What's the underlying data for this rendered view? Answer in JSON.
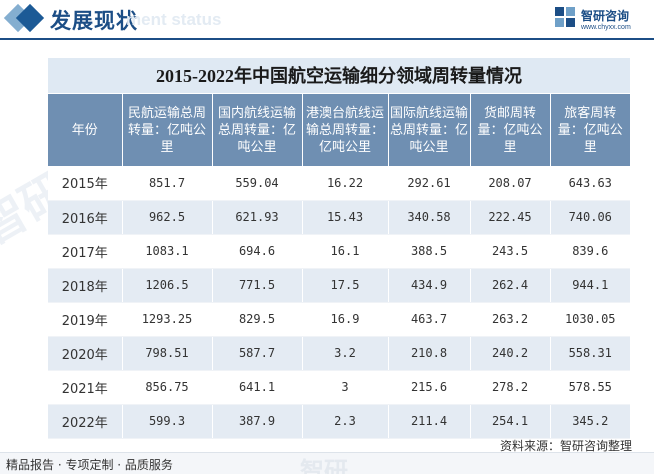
{
  "header": {
    "title": "发展现状",
    "ghost_text": "ment status"
  },
  "logo": {
    "name": "智研咨询",
    "url": "www.chyxx.com"
  },
  "table": {
    "title": "2015-2022年中国航空运输细分领域周转量情况",
    "columns": [
      "年份",
      "民航运输总周转量：亿吨公里",
      "国内航线运输总周转量：亿吨公里",
      "港澳台航线运输总周转量：亿吨公里",
      "国际航线运输总周转量：亿吨公里",
      "货邮周转量：亿吨公里",
      "旅客周转量：亿吨公里"
    ],
    "rows": [
      [
        "2015年",
        "851.7",
        "559.04",
        "16.22",
        "292.61",
        "208.07",
        "643.63"
      ],
      [
        "2016年",
        "962.5",
        "621.93",
        "15.43",
        "340.58",
        "222.45",
        "740.06"
      ],
      [
        "2017年",
        "1083.1",
        "694.6",
        "16.1",
        "388.5",
        "243.5",
        "839.6"
      ],
      [
        "2018年",
        "1206.5",
        "771.5",
        "17.5",
        "434.9",
        "262.4",
        "944.1"
      ],
      [
        "2019年",
        "1293.25",
        "829.5",
        "16.9",
        "463.7",
        "263.2",
        "1030.05"
      ],
      [
        "2020年",
        "798.51",
        "587.7",
        "3.2",
        "210.8",
        "240.2",
        "558.31"
      ],
      [
        "2021年",
        "856.75",
        "641.1",
        "3",
        "215.6",
        "278.2",
        "578.55"
      ],
      [
        "2022年",
        "599.3",
        "387.9",
        "2.3",
        "211.4",
        "254.1",
        "345.2"
      ]
    ]
  },
  "source": "资料来源：智研咨询整理",
  "footer": {
    "text": "精品报告 · 专项定制 · 品质服务",
    "ghost": "智研"
  },
  "colors": {
    "brand": "#1c4e86",
    "header_cell": "#6f8fb2",
    "title_band": "#dfe9f3",
    "alt_row": "#e4ebf3"
  },
  "icons": [
    "diamond-squares-icon",
    "logo-mark-icon"
  ]
}
